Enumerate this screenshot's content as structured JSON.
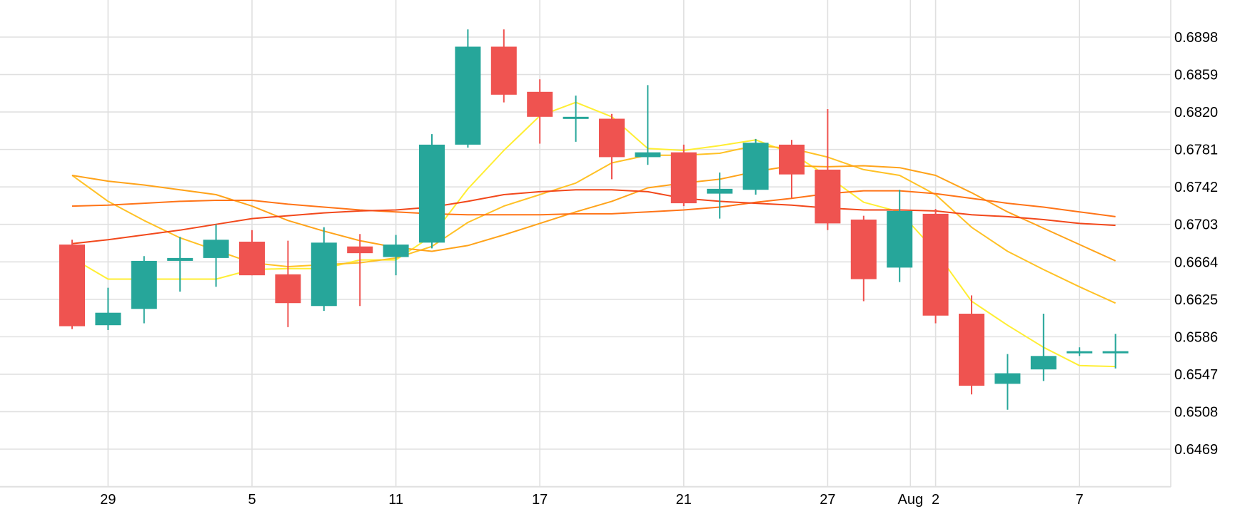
{
  "chart_data": {
    "type": "candlestick",
    "title": "",
    "xlabel": "",
    "ylabel": "",
    "ylim": [
      0.643,
      0.693
    ],
    "y_ticks": [
      "0.6898",
      "0.6859",
      "0.6820",
      "0.6781",
      "0.6742",
      "0.6703",
      "0.6664",
      "0.6625",
      "0.6586",
      "0.6547",
      "0.6508",
      "0.6469"
    ],
    "x_ticks": [
      {
        "label": "29",
        "index": 1
      },
      {
        "label": "5",
        "index": 5
      },
      {
        "label": "11",
        "index": 9
      },
      {
        "label": "17",
        "index": 13
      },
      {
        "label": "21",
        "index": 17
      },
      {
        "label": "27",
        "index": 21
      },
      {
        "label": "Aug",
        "index": 23.3
      },
      {
        "label": "2",
        "index": 24
      },
      {
        "label": "7",
        "index": 28
      }
    ],
    "grid": true,
    "colors": {
      "up": "#26a69a",
      "down": "#ef5350",
      "grid": "#e0e0e0",
      "axis_text": "#000000"
    },
    "candles": [
      {
        "open": 0.6682,
        "high": 0.6687,
        "low": 0.6594,
        "close": 0.6597
      },
      {
        "open": 0.6598,
        "high": 0.6637,
        "low": 0.6593,
        "close": 0.6611
      },
      {
        "open": 0.6615,
        "high": 0.667,
        "low": 0.66,
        "close": 0.6665
      },
      {
        "open": 0.6665,
        "high": 0.669,
        "low": 0.6633,
        "close": 0.6668
      },
      {
        "open": 0.6668,
        "high": 0.6703,
        "low": 0.6638,
        "close": 0.6687
      },
      {
        "open": 0.6685,
        "high": 0.6697,
        "low": 0.665,
        "close": 0.665
      },
      {
        "open": 0.6651,
        "high": 0.6686,
        "low": 0.6596,
        "close": 0.6621
      },
      {
        "open": 0.6618,
        "high": 0.67,
        "low": 0.6613,
        "close": 0.6684
      },
      {
        "open": 0.668,
        "high": 0.6693,
        "low": 0.6618,
        "close": 0.6673
      },
      {
        "open": 0.6669,
        "high": 0.6692,
        "low": 0.665,
        "close": 0.6682
      },
      {
        "open": 0.6684,
        "high": 0.6797,
        "low": 0.6678,
        "close": 0.6786
      },
      {
        "open": 0.6786,
        "high": 0.6906,
        "low": 0.6783,
        "close": 0.6888
      },
      {
        "open": 0.6888,
        "high": 0.6906,
        "low": 0.683,
        "close": 0.6838
      },
      {
        "open": 0.6841,
        "high": 0.6854,
        "low": 0.6787,
        "close": 0.6815
      },
      {
        "open": 0.6815,
        "high": 0.6837,
        "low": 0.6789,
        "close": 0.6815
      },
      {
        "open": 0.6813,
        "high": 0.6818,
        "low": 0.675,
        "close": 0.6773
      },
      {
        "open": 0.6773,
        "high": 0.6848,
        "low": 0.6765,
        "close": 0.6778
      },
      {
        "open": 0.6778,
        "high": 0.6786,
        "low": 0.6722,
        "close": 0.6725
      },
      {
        "open": 0.6735,
        "high": 0.6757,
        "low": 0.6709,
        "close": 0.674
      },
      {
        "open": 0.6739,
        "high": 0.6792,
        "low": 0.6734,
        "close": 0.6788
      },
      {
        "open": 0.6786,
        "high": 0.6791,
        "low": 0.673,
        "close": 0.6755
      },
      {
        "open": 0.676,
        "high": 0.6823,
        "low": 0.6697,
        "close": 0.6704
      },
      {
        "open": 0.6708,
        "high": 0.6712,
        "low": 0.6623,
        "close": 0.6646
      },
      {
        "open": 0.6658,
        "high": 0.6739,
        "low": 0.6643,
        "close": 0.6717
      },
      {
        "open": 0.6714,
        "high": 0.6719,
        "low": 0.66,
        "close": 0.6608
      },
      {
        "open": 0.661,
        "high": 0.6629,
        "low": 0.6526,
        "close": 0.6535
      },
      {
        "open": 0.6537,
        "high": 0.6568,
        "low": 0.651,
        "close": 0.6548
      },
      {
        "open": 0.6552,
        "high": 0.661,
        "low": 0.654,
        "close": 0.6566
      },
      {
        "open": 0.6571,
        "high": 0.6575,
        "low": 0.6566,
        "close": 0.6571
      },
      {
        "open": 0.6571,
        "high": 0.6589,
        "low": 0.6553,
        "close": 0.6571
      }
    ],
    "series": [
      {
        "color": "#ffee33",
        "values": [
          0.6668,
          0.6646,
          0.6646,
          0.6646,
          0.6646,
          0.6656,
          0.6657,
          0.6657,
          0.6666,
          0.6666,
          0.6691,
          0.674,
          0.678,
          0.6816,
          0.683,
          0.6815,
          0.6782,
          0.678,
          0.6785,
          0.6791,
          0.6777,
          0.6753,
          0.6726,
          0.6716,
          0.6675,
          0.6623,
          0.6598,
          0.6575,
          0.6556,
          0.6555
        ]
      },
      {
        "color": "#ffc125",
        "values": [
          0.6754,
          0.6727,
          0.6707,
          0.6689,
          0.6676,
          0.6663,
          0.6659,
          0.6661,
          0.6663,
          0.6668,
          0.668,
          0.6705,
          0.6722,
          0.6734,
          0.6746,
          0.6767,
          0.6775,
          0.6775,
          0.6777,
          0.6785,
          0.6782,
          0.6773,
          0.676,
          0.6754,
          0.6734,
          0.67,
          0.6675,
          0.6656,
          0.6638,
          0.6621
        ]
      },
      {
        "color": "#ffa31a",
        "values": [
          0.6754,
          0.6748,
          0.6744,
          0.6739,
          0.6734,
          0.6722,
          0.6707,
          0.6696,
          0.6686,
          0.6679,
          0.6675,
          0.6681,
          0.6692,
          0.6704,
          0.6716,
          0.6727,
          0.6741,
          0.6746,
          0.675,
          0.6758,
          0.6764,
          0.6763,
          0.6764,
          0.6762,
          0.6754,
          0.6736,
          0.6716,
          0.6699,
          0.6682,
          0.6665
        ]
      },
      {
        "color": "#ff7417",
        "values": [
          0.6722,
          0.6723,
          0.6725,
          0.6727,
          0.6728,
          0.6728,
          0.6724,
          0.6721,
          0.6718,
          0.6716,
          0.6714,
          0.6713,
          0.6713,
          0.6713,
          0.6714,
          0.6714,
          0.6716,
          0.6718,
          0.6721,
          0.6726,
          0.673,
          0.6735,
          0.6738,
          0.6738,
          0.6735,
          0.673,
          0.6725,
          0.6721,
          0.6716,
          0.6711
        ]
      },
      {
        "color": "#f2481b",
        "values": [
          0.6683,
          0.6687,
          0.6692,
          0.6697,
          0.6703,
          0.6709,
          0.6712,
          0.6715,
          0.6717,
          0.6718,
          0.6721,
          0.6727,
          0.6734,
          0.6737,
          0.6739,
          0.6739,
          0.6737,
          0.673,
          0.6727,
          0.6725,
          0.6723,
          0.672,
          0.6718,
          0.6718,
          0.6717,
          0.6713,
          0.6711,
          0.6708,
          0.6704,
          0.6702
        ]
      }
    ]
  }
}
